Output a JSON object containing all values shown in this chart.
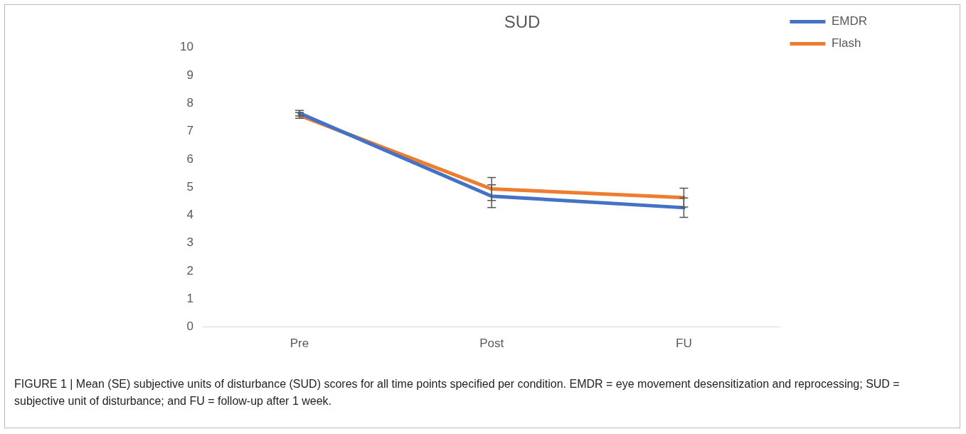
{
  "chart_data": {
    "type": "line",
    "title": "SUD",
    "categories": [
      "Pre",
      "Post",
      "FU"
    ],
    "series": [
      {
        "name": "EMDR",
        "color": "#4472c4",
        "values": [
          7.65,
          4.68,
          4.27
        ],
        "errors": [
          0.1,
          0.41,
          0.35
        ]
      },
      {
        "name": "Flash",
        "color": "#ed7d31",
        "values": [
          7.57,
          4.94,
          4.63
        ],
        "errors": [
          0.1,
          0.41,
          0.34
        ]
      }
    ],
    "ylim": [
      0,
      10
    ],
    "yticks": [
      0,
      1,
      2,
      3,
      4,
      5,
      6,
      7,
      8,
      9,
      10
    ],
    "grid": false,
    "legend": "top right",
    "marker": "none",
    "line_style": "solid",
    "annotations": [
      "FIGURE 1 | Mean (SE) subjective units of disturbance (SUD) scores for all time points specified per condition. EMDR = eye movement desensitization and reprocessing; SUD = subjective unit of disturbance; and FU = follow-up after 1 week."
    ]
  }
}
